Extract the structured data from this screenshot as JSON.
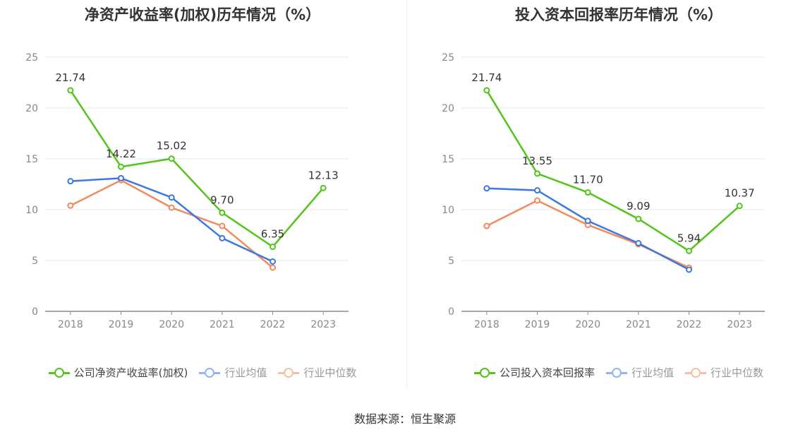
{
  "source_label": "数据来源：恒生聚源",
  "chart_data": [
    {
      "type": "line",
      "title": "净资产收益率(加权)历年情况（%）",
      "categories": [
        "2018",
        "2019",
        "2020",
        "2021",
        "2022",
        "2023"
      ],
      "ylim": [
        0,
        25
      ],
      "yticks": [
        "0",
        "5",
        "10",
        "15",
        "20",
        "25"
      ],
      "grid": true,
      "legend_position": "bottom",
      "series": [
        {
          "name": "公司净资产收益率(加权)",
          "color": "#52c41a",
          "values": [
            21.74,
            14.22,
            15.02,
            9.7,
            6.35,
            12.13
          ],
          "labels": [
            "21.74",
            "14.22",
            "15.02",
            "9.70",
            "6.35",
            "12.13"
          ]
        },
        {
          "name": "行业均值",
          "color": "#3c78e0",
          "values": [
            12.8,
            13.1,
            11.2,
            7.2,
            4.9,
            null
          ]
        },
        {
          "name": "行业中位数",
          "color": "#f28a5c",
          "values": [
            10.4,
            12.9,
            10.2,
            8.4,
            4.3,
            null
          ]
        }
      ]
    },
    {
      "type": "line",
      "title": "投入资本回报率历年情况（%）",
      "categories": [
        "2018",
        "2019",
        "2020",
        "2021",
        "2022",
        "2023"
      ],
      "ylim": [
        0,
        25
      ],
      "yticks": [
        "0",
        "5",
        "10",
        "15",
        "20",
        "25"
      ],
      "grid": true,
      "legend_position": "bottom",
      "series": [
        {
          "name": "公司投入资本回报率",
          "color": "#52c41a",
          "values": [
            21.74,
            13.55,
            11.7,
            9.09,
            5.94,
            10.37
          ],
          "labels": [
            "21.74",
            "13.55",
            "11.70",
            "9.09",
            "5.94",
            "10.37"
          ]
        },
        {
          "name": "行业均值",
          "color": "#3c78e0",
          "values": [
            12.1,
            11.9,
            8.9,
            6.7,
            4.1,
            null
          ]
        },
        {
          "name": "行业中位数",
          "color": "#f28a5c",
          "values": [
            8.4,
            10.9,
            8.5,
            6.6,
            4.3,
            null
          ]
        }
      ]
    }
  ]
}
